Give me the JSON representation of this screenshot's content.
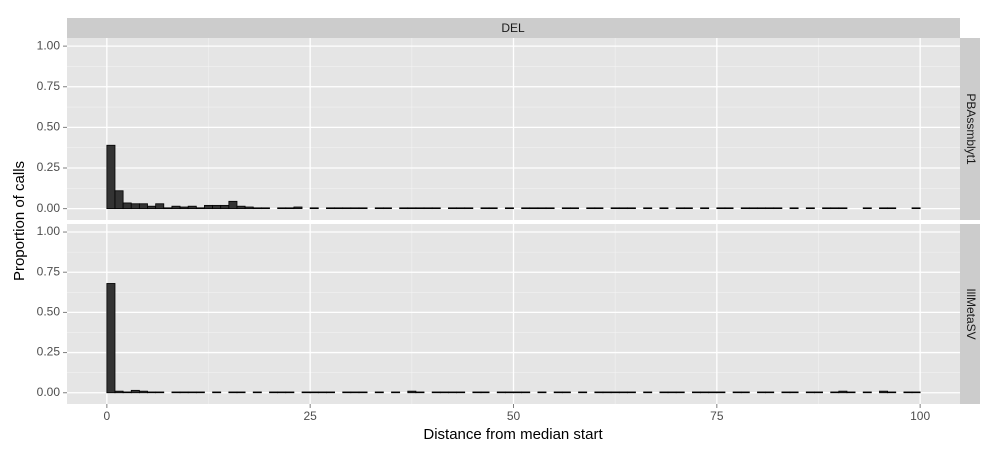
{
  "column_label": "DEL",
  "x_label": "Distance from median start",
  "y_label": "Proportion of calls",
  "chart_data": [
    {
      "type": "histogram",
      "title": "PBAssmblyt1",
      "color": "#333333",
      "bins": [
        0,
        1,
        2,
        3,
        4,
        5,
        6,
        7,
        8,
        9,
        10,
        11,
        12,
        13,
        14,
        15,
        16,
        17,
        18,
        19,
        20,
        21,
        22,
        23,
        24,
        25,
        26,
        27,
        28,
        29,
        30,
        31,
        32,
        33,
        34,
        35,
        36,
        37,
        38,
        39,
        40,
        41,
        42,
        43,
        44,
        45,
        46,
        47,
        48,
        49,
        50,
        51,
        52,
        53,
        54,
        55,
        56,
        57,
        58,
        59,
        60,
        61,
        62,
        63,
        64,
        65,
        66,
        67,
        68,
        69,
        70,
        71,
        72,
        73,
        74,
        75,
        76,
        77,
        78,
        79,
        80,
        81,
        82,
        83,
        84,
        85,
        86,
        87,
        88,
        89,
        90,
        91,
        92,
        93,
        94,
        95,
        96,
        97,
        98,
        99,
        100
      ],
      "values": [
        0.39,
        0.11,
        0.035,
        0.03,
        0.03,
        0.015,
        0.03,
        0.005,
        0.015,
        0.01,
        0.015,
        0.005,
        0.02,
        0.02,
        0.02,
        0.045,
        0.015,
        0.01,
        0.005,
        0.005,
        0,
        0.005,
        0.005,
        0.01,
        0,
        0.005,
        0,
        0.005,
        0.005,
        0.005,
        0.005,
        0.005,
        0,
        0.005,
        0.005,
        0,
        0.005,
        0.005,
        0.005,
        0.005,
        0.005,
        0,
        0.005,
        0.005,
        0.005,
        0,
        0.005,
        0.005,
        0,
        0.005,
        0,
        0.005,
        0.005,
        0.005,
        0.005,
        0,
        0.005,
        0.005,
        0,
        0.005,
        0.005,
        0,
        0.005,
        0.005,
        0.005,
        0,
        0.005,
        0,
        0.005,
        0,
        0.005,
        0.005,
        0,
        0.005,
        0,
        0.005,
        0.005,
        0,
        0.005,
        0.005,
        0.005,
        0.005,
        0.005,
        0,
        0.005,
        0,
        0.005,
        0,
        0.005,
        0.005,
        0.005,
        0,
        0,
        0.005,
        0,
        0.005,
        0.005,
        0,
        0,
        0.005
      ],
      "xlim": [
        -4.9,
        104.9
      ],
      "ylim": [
        -0.07,
        1.05
      ],
      "yticks": [
        {
          "value": 0,
          "label": "0.00"
        },
        {
          "value": 0.25,
          "label": "0.25"
        },
        {
          "value": 0.5,
          "label": "0.50"
        },
        {
          "value": 0.75,
          "label": "0.75"
        },
        {
          "value": 1,
          "label": "1.00"
        }
      ],
      "xticks": [
        0,
        25,
        50,
        75,
        100
      ],
      "grid": true
    },
    {
      "type": "histogram",
      "title": "IllMetaSV",
      "color": "#333333",
      "bins": [
        0,
        1,
        2,
        3,
        4,
        5,
        6,
        7,
        8,
        9,
        10,
        11,
        12,
        13,
        14,
        15,
        16,
        17,
        18,
        19,
        20,
        21,
        22,
        23,
        24,
        25,
        26,
        27,
        28,
        29,
        30,
        31,
        32,
        33,
        34,
        35,
        36,
        37,
        38,
        39,
        40,
        41,
        42,
        43,
        44,
        45,
        46,
        47,
        48,
        49,
        50,
        51,
        52,
        53,
        54,
        55,
        56,
        57,
        58,
        59,
        60,
        61,
        62,
        63,
        64,
        65,
        66,
        67,
        68,
        69,
        70,
        71,
        72,
        73,
        74,
        75,
        76,
        77,
        78,
        79,
        80,
        81,
        82,
        83,
        84,
        85,
        86,
        87,
        88,
        89,
        90,
        91,
        92,
        93,
        94,
        95,
        96,
        97,
        98,
        99,
        100
      ],
      "values": [
        0.68,
        0.01,
        0.005,
        0.015,
        0.01,
        0.005,
        0.005,
        0,
        0.005,
        0.005,
        0.005,
        0.005,
        0,
        0.005,
        0,
        0.005,
        0.005,
        0,
        0.005,
        0,
        0.005,
        0.005,
        0.005,
        0,
        0.005,
        0.005,
        0.005,
        0.005,
        0,
        0.005,
        0.005,
        0.005,
        0,
        0.005,
        0,
        0.005,
        0,
        0.01,
        0.005,
        0,
        0.005,
        0.005,
        0.005,
        0.005,
        0,
        0.005,
        0.005,
        0,
        0.005,
        0.005,
        0.005,
        0.005,
        0,
        0.005,
        0,
        0.005,
        0.005,
        0,
        0.005,
        0,
        0.005,
        0.005,
        0.005,
        0.005,
        0.005,
        0,
        0.005,
        0,
        0.005,
        0.005,
        0.005,
        0,
        0.005,
        0.005,
        0.005,
        0.005,
        0,
        0.005,
        0.005,
        0,
        0.005,
        0.005,
        0,
        0.005,
        0.005,
        0,
        0.005,
        0.005,
        0,
        0.005,
        0.01,
        0.005,
        0,
        0.005,
        0,
        0.01,
        0.005,
        0,
        0.005,
        0.005
      ],
      "xlim": [
        -4.9,
        104.9
      ],
      "ylim": [
        -0.07,
        1.05
      ],
      "yticks": [
        {
          "value": 0,
          "label": "0.00"
        },
        {
          "value": 0.25,
          "label": "0.25"
        },
        {
          "value": 0.5,
          "label": "0.50"
        },
        {
          "value": 0.75,
          "label": "0.75"
        },
        {
          "value": 1,
          "label": "1.00"
        }
      ],
      "xticks": [
        0,
        25,
        50,
        75,
        100
      ],
      "grid": true
    }
  ]
}
